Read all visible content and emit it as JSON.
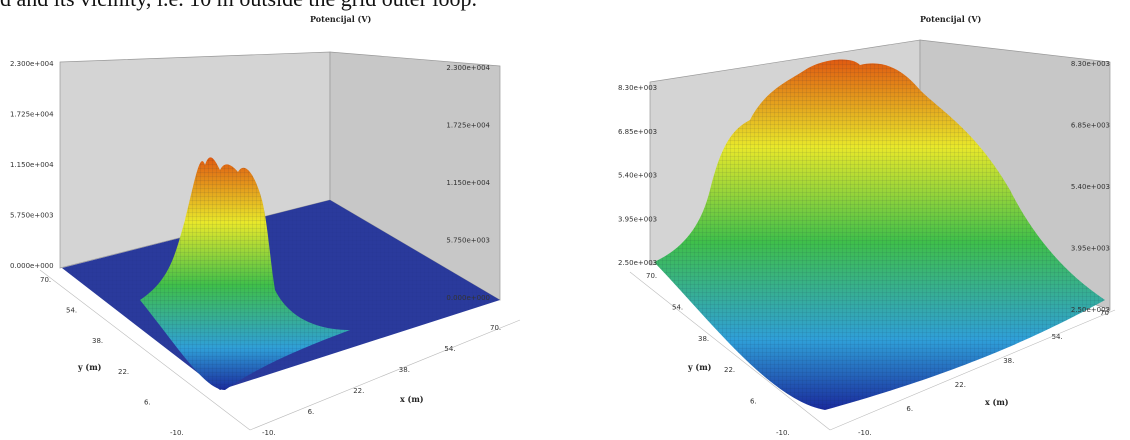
{
  "caption_fragment": "d and its vicinity, i.e. 10 m outside the grid outer loop.",
  "chart_data": [
    {
      "type": "surface3d",
      "title": "Potencijal (V)",
      "xlabel": "x (m)",
      "ylabel": "y (m)",
      "zlabel": "",
      "z_ticks_left": [
        "2.300e+004",
        "1.725e+004",
        "1.150e+004",
        "5.750e+003",
        "0.000e+000"
      ],
      "z_ticks_right": [
        "2.300e+004",
        "1.725e+004",
        "1.150e+004",
        "5.750e+003",
        "0.000e+000"
      ],
      "y_ticks": [
        "70.",
        "54.",
        "38.",
        "22.",
        "6.",
        "-10."
      ],
      "x_ticks": [
        "-10.",
        "6.",
        "22.",
        "38.",
        "54.",
        "70."
      ],
      "zlim": [
        0,
        23000
      ],
      "xlim": [
        -10,
        70
      ],
      "ylim": [
        -10,
        70
      ],
      "colormap": [
        "#1a2a9c",
        "#2f9fd8",
        "#3fbf4a",
        "#e8e82a",
        "#e05a10"
      ],
      "floor_color": "#2a3a9c"
    },
    {
      "type": "surface3d",
      "title": "Potencijal (V)",
      "xlabel": "x (m)",
      "ylabel": "y (m)",
      "zlabel": "",
      "z_ticks_left": [
        "8.30e+003",
        "6.85e+003",
        "5.40e+003",
        "3.95e+003",
        "2.50e+003"
      ],
      "z_ticks_right": [
        "8.30e+003",
        "6.85e+003",
        "5.40e+003",
        "3.95e+003",
        "2.50e+003"
      ],
      "y_ticks": [
        "70.",
        "54.",
        "38.",
        "22.",
        "6.",
        "-10."
      ],
      "x_ticks": [
        "-10.",
        "6.",
        "22.",
        "38.",
        "54.",
        "70"
      ],
      "zlim": [
        2500,
        8300
      ],
      "xlim": [
        -10,
        70
      ],
      "ylim": [
        -10,
        70
      ],
      "colormap": [
        "#1a2a9c",
        "#2f9fd8",
        "#3fbf4a",
        "#e8e82a",
        "#e05a10"
      ]
    }
  ]
}
